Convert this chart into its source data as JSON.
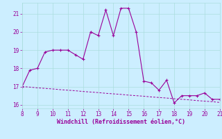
{
  "x_main": [
    8,
    8.5,
    9,
    9.5,
    10,
    10.5,
    11,
    11.5,
    12,
    12.5,
    13,
    13.5,
    14,
    14.5,
    15,
    15.5,
    16,
    16.5,
    17,
    17.5,
    18,
    18.5,
    19,
    19.5,
    20,
    20.5,
    21
  ],
  "y_main": [
    17.0,
    17.9,
    18.0,
    18.9,
    19.0,
    19.0,
    19.0,
    18.75,
    18.5,
    20.0,
    19.8,
    21.2,
    19.8,
    21.3,
    21.3,
    20.0,
    17.3,
    17.2,
    16.8,
    17.35,
    16.1,
    16.5,
    16.5,
    16.5,
    16.65,
    16.3,
    16.3
  ],
  "x_ref": [
    8,
    8.5,
    9,
    9.5,
    10,
    10.5,
    11,
    11.5,
    12,
    12.5,
    13,
    13.5,
    14,
    14.5,
    15,
    15.5,
    16,
    16.5,
    17,
    17.5,
    18,
    18.5,
    19,
    19.5,
    20,
    20.5,
    21
  ],
  "y_ref": [
    17.0,
    16.97,
    16.93,
    16.9,
    16.87,
    16.83,
    16.8,
    16.77,
    16.73,
    16.7,
    16.67,
    16.63,
    16.6,
    16.57,
    16.53,
    16.5,
    16.47,
    16.43,
    16.4,
    16.37,
    16.33,
    16.3,
    16.27,
    16.23,
    16.2,
    16.17,
    16.13
  ],
  "marker_x": [
    8,
    9,
    10,
    10.5,
    11,
    12,
    13,
    13.5,
    14.5,
    15,
    15.5,
    16,
    17,
    17.5,
    18,
    19,
    19.5,
    20,
    20.5,
    21
  ],
  "marker_y": [
    17.0,
    18.0,
    19.0,
    19.0,
    19.0,
    18.5,
    19.8,
    21.2,
    21.3,
    21.3,
    20.0,
    17.3,
    16.8,
    17.35,
    16.1,
    16.5,
    16.5,
    16.65,
    16.3,
    16.3
  ],
  "line_color": "#990099",
  "bg_color": "#cceeff",
  "grid_color": "#aadddd",
  "xlabel": "Windchill (Refroidissement éolien,°C)",
  "xlim": [
    8,
    21
  ],
  "ylim": [
    15.8,
    21.6
  ],
  "yticks": [
    16,
    17,
    18,
    19,
    20,
    21
  ],
  "xticks": [
    8,
    9,
    10,
    11,
    12,
    13,
    14,
    15,
    16,
    17,
    18,
    19,
    20,
    21
  ]
}
